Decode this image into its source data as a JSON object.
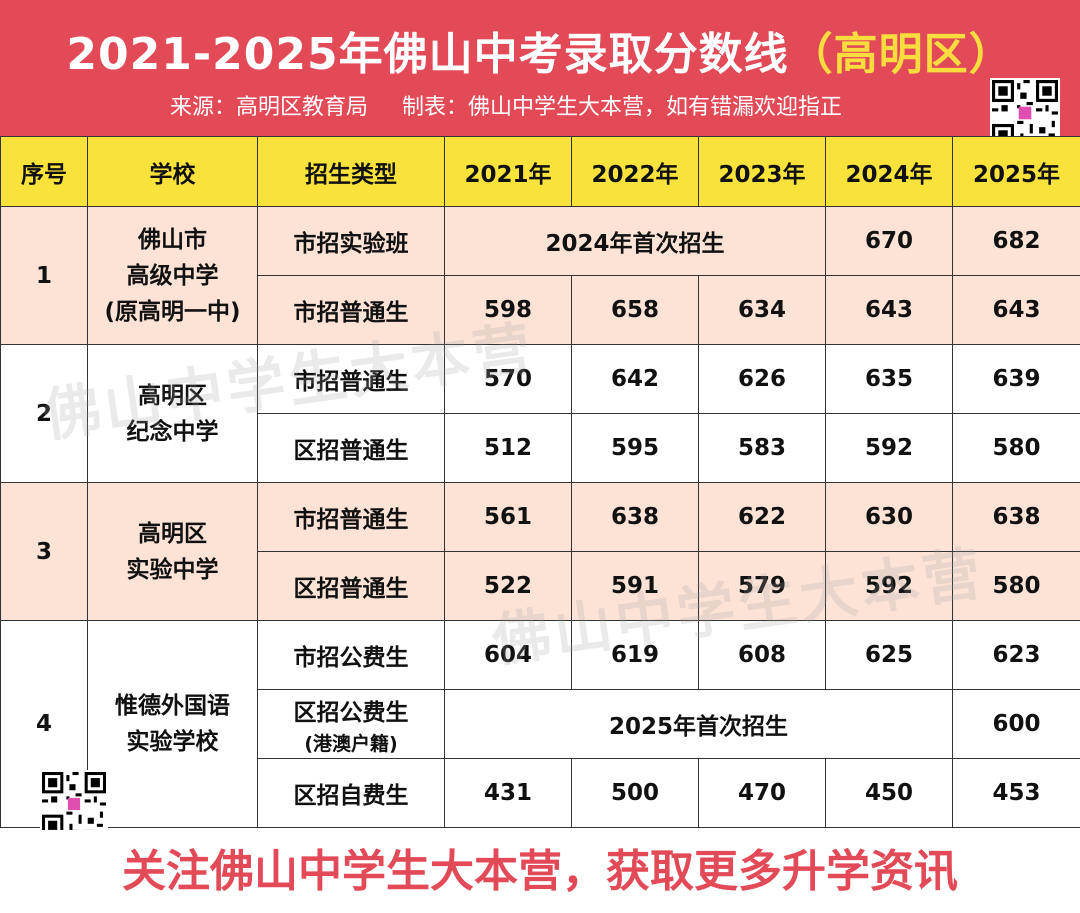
{
  "header": {
    "title_main": "2021-2025年佛山中考录取分数线",
    "title_accent": "（高明区）",
    "source": "来源：高明区教育局",
    "maker": "制表：佛山中学生大本营，如有错漏欢迎指正"
  },
  "columns": [
    "序号",
    "学校",
    "招生类型",
    "2021年",
    "2022年",
    "2023年",
    "2024年",
    "2025年"
  ],
  "schools": [
    {
      "no": "1",
      "name_lines": [
        "佛山市",
        "高级中学",
        "(原高明一中)"
      ],
      "rows": [
        {
          "type": "市招实验班",
          "note": "2024年首次招生",
          "y2024": "670",
          "y2025": "682"
        },
        {
          "type": "市招普通生",
          "y2021": "598",
          "y2022": "658",
          "y2023": "634",
          "y2024": "643",
          "y2025": "643"
        }
      ]
    },
    {
      "no": "2",
      "name_lines": [
        "高明区",
        "纪念中学"
      ],
      "rows": [
        {
          "type": "市招普通生",
          "y2021": "570",
          "y2022": "642",
          "y2023": "626",
          "y2024": "635",
          "y2025": "639"
        },
        {
          "type": "区招普通生",
          "y2021": "512",
          "y2022": "595",
          "y2023": "583",
          "y2024": "592",
          "y2025": "580"
        }
      ]
    },
    {
      "no": "3",
      "name_lines": [
        "高明区",
        "实验中学"
      ],
      "rows": [
        {
          "type": "市招普通生",
          "y2021": "561",
          "y2022": "638",
          "y2023": "622",
          "y2024": "630",
          "y2025": "638"
        },
        {
          "type": "区招普通生",
          "y2021": "522",
          "y2022": "591",
          "y2023": "579",
          "y2024": "592",
          "y2025": "580"
        }
      ]
    },
    {
      "no": "4",
      "name_lines": [
        "惟德外国语",
        "实验学校"
      ],
      "rows": [
        {
          "type": "市招公费生",
          "y2021": "604",
          "y2022": "619",
          "y2023": "608",
          "y2024": "625",
          "y2025": "623"
        },
        {
          "type": "区招公费生",
          "type_sub": "(港澳户籍)",
          "note": "2025年首次招生",
          "y2025": "600"
        },
        {
          "type": "区招自费生",
          "y2021": "431",
          "y2022": "500",
          "y2023": "470",
          "y2024": "450",
          "y2025": "453"
        }
      ]
    }
  ],
  "watermark": "佛山中学生大本营",
  "footer": "关注佛山中学生大本营，获取更多升学资讯",
  "colors": {
    "header_bg": "#e24a58",
    "title_accent": "#f9dd3f",
    "column_header_bg": "#f8e23b",
    "pink_row_bg": "#fde3d6",
    "footer_text": "#e24a58"
  },
  "icons": [
    "qr-code-icon"
  ]
}
